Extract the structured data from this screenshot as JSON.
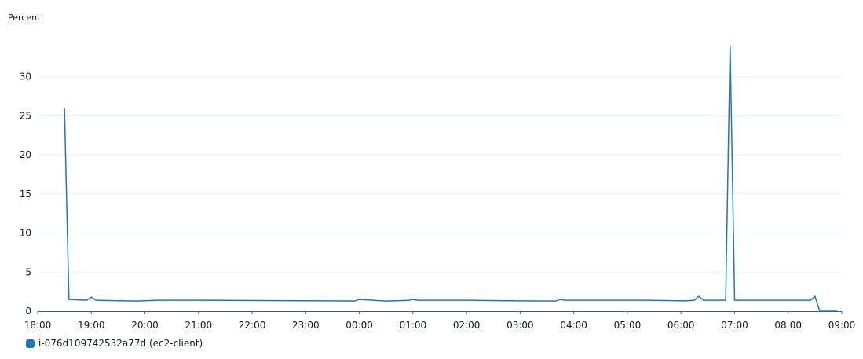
{
  "chart_data": {
    "type": "line",
    "ylabel": "Percent",
    "ylim": [
      0,
      35
    ],
    "yticks": [
      0,
      5,
      10,
      15,
      20,
      25,
      30
    ],
    "xticks": [
      "18:00",
      "19:00",
      "20:00",
      "21:00",
      "22:00",
      "23:00",
      "00:00",
      "01:00",
      "02:00",
      "03:00",
      "04:00",
      "05:00",
      "06:00",
      "07:00",
      "08:00",
      "09:00"
    ],
    "xlim": [
      "18:00",
      "09:00"
    ],
    "grid": true,
    "legend_position": "bottom-left",
    "series": [
      {
        "name": "i-076d109742532a77d (ec2-client)",
        "color": "#1f77b4",
        "points": [
          [
            "18:30",
            26.0
          ],
          [
            "18:35",
            1.5
          ],
          [
            "18:55",
            1.4
          ],
          [
            "19:00",
            1.8
          ],
          [
            "19:05",
            1.4
          ],
          [
            "19:25",
            1.35
          ],
          [
            "19:50",
            1.3
          ],
          [
            "20:15",
            1.4
          ],
          [
            "20:45",
            1.4
          ],
          [
            "21:30",
            1.38
          ],
          [
            "22:30",
            1.35
          ],
          [
            "23:30",
            1.32
          ],
          [
            "23:55",
            1.3
          ],
          [
            "00:00",
            1.5
          ],
          [
            "00:30",
            1.3
          ],
          [
            "00:55",
            1.38
          ],
          [
            "01:00",
            1.5
          ],
          [
            "01:05",
            1.4
          ],
          [
            "02:00",
            1.4
          ],
          [
            "03:00",
            1.32
          ],
          [
            "03:40",
            1.3
          ],
          [
            "03:45",
            1.5
          ],
          [
            "03:50",
            1.4
          ],
          [
            "04:30",
            1.4
          ],
          [
            "05:20",
            1.4
          ],
          [
            "06:05",
            1.32
          ],
          [
            "06:15",
            1.4
          ],
          [
            "06:20",
            1.9
          ],
          [
            "06:25",
            1.4
          ],
          [
            "06:50",
            1.4
          ],
          [
            "06:55",
            34.0
          ],
          [
            "07:00",
            1.4
          ],
          [
            "07:30",
            1.4
          ],
          [
            "08:00",
            1.4
          ],
          [
            "08:25",
            1.4
          ],
          [
            "08:30",
            1.9
          ],
          [
            "08:35",
            0.1
          ],
          [
            "08:55",
            0.1
          ]
        ]
      }
    ]
  }
}
